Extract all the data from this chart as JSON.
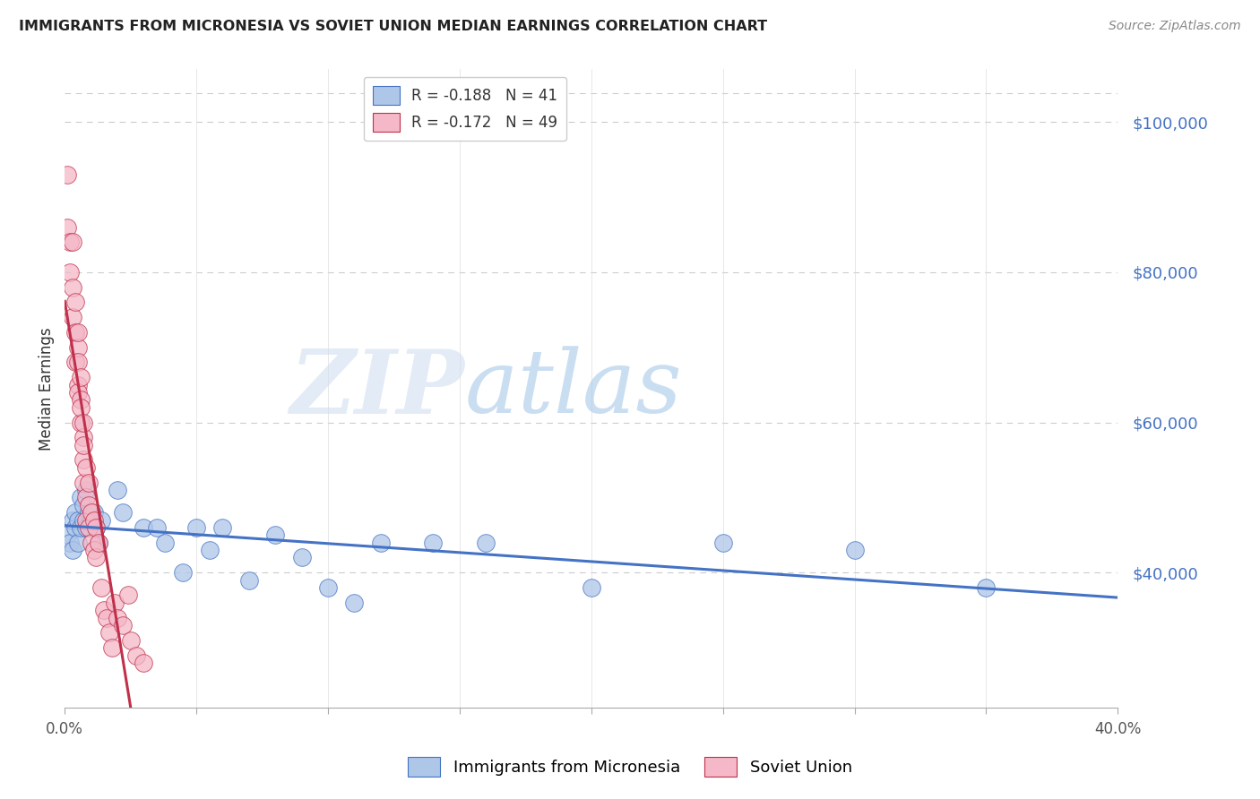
{
  "title": "IMMIGRANTS FROM MICRONESIA VS SOVIET UNION MEDIAN EARNINGS CORRELATION CHART",
  "source": "Source: ZipAtlas.com",
  "ylabel": "Median Earnings",
  "xmin": 0.0,
  "xmax": 0.4,
  "ymin": 22000,
  "ymax": 107000,
  "yticks": [
    40000,
    60000,
    80000,
    100000
  ],
  "ytick_labels": [
    "$40,000",
    "$60,000",
    "$80,000",
    "$100,000"
  ],
  "xticks": [
    0.0,
    0.05,
    0.1,
    0.15,
    0.2,
    0.25,
    0.3,
    0.35,
    0.4
  ],
  "xtick_labels": [
    "0.0%",
    "",
    "",
    "",
    "",
    "",
    "",
    "",
    "40.0%"
  ],
  "micronesia_R": -0.188,
  "micronesia_N": 41,
  "soviet_R": -0.172,
  "soviet_N": 49,
  "micronesia_color": "#aec6e8",
  "soviet_color": "#f4b8c8",
  "micronesia_line_color": "#4472c4",
  "soviet_line_color": "#c0304a",
  "watermark_zip": "ZIP",
  "watermark_atlas": "atlas",
  "micronesia_x": [
    0.001,
    0.002,
    0.003,
    0.003,
    0.004,
    0.004,
    0.005,
    0.005,
    0.006,
    0.006,
    0.007,
    0.007,
    0.008,
    0.008,
    0.009,
    0.01,
    0.011,
    0.012,
    0.013,
    0.014,
    0.02,
    0.022,
    0.03,
    0.035,
    0.038,
    0.045,
    0.05,
    0.055,
    0.06,
    0.07,
    0.08,
    0.09,
    0.1,
    0.11,
    0.12,
    0.14,
    0.16,
    0.2,
    0.25,
    0.3,
    0.35
  ],
  "micronesia_y": [
    45000,
    44000,
    47000,
    43000,
    46000,
    48000,
    47000,
    44000,
    50000,
    46000,
    47000,
    49000,
    51000,
    46000,
    48000,
    47000,
    48000,
    46000,
    44000,
    47000,
    51000,
    48000,
    46000,
    46000,
    44000,
    40000,
    46000,
    43000,
    46000,
    39000,
    45000,
    42000,
    38000,
    36000,
    44000,
    44000,
    44000,
    38000,
    44000,
    43000,
    38000
  ],
  "soviet_x": [
    0.001,
    0.001,
    0.002,
    0.002,
    0.003,
    0.003,
    0.003,
    0.004,
    0.004,
    0.004,
    0.005,
    0.005,
    0.005,
    0.005,
    0.005,
    0.006,
    0.006,
    0.006,
    0.006,
    0.007,
    0.007,
    0.007,
    0.007,
    0.007,
    0.008,
    0.008,
    0.008,
    0.009,
    0.009,
    0.009,
    0.01,
    0.01,
    0.011,
    0.011,
    0.012,
    0.012,
    0.013,
    0.014,
    0.015,
    0.016,
    0.017,
    0.018,
    0.019,
    0.02,
    0.022,
    0.024,
    0.025,
    0.027,
    0.03
  ],
  "soviet_y": [
    93000,
    86000,
    84000,
    80000,
    78000,
    84000,
    74000,
    76000,
    72000,
    68000,
    70000,
    65000,
    68000,
    72000,
    64000,
    63000,
    66000,
    60000,
    62000,
    58000,
    60000,
    55000,
    52000,
    57000,
    54000,
    50000,
    47000,
    52000,
    46000,
    49000,
    48000,
    44000,
    47000,
    43000,
    42000,
    46000,
    44000,
    38000,
    35000,
    34000,
    32000,
    30000,
    36000,
    34000,
    33000,
    37000,
    31000,
    29000,
    28000
  ]
}
